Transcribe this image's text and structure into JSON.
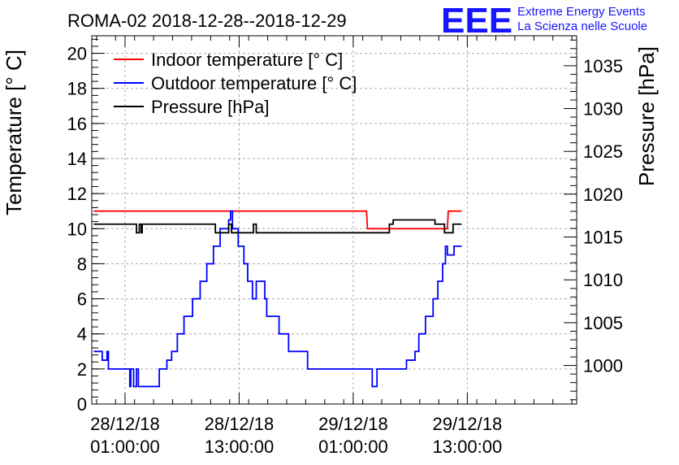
{
  "chart_data": {
    "type": "line",
    "title": "ROMA-02 2018-12-28--2018-12-29",
    "ylabel": "Temperature [° C]",
    "y2label": "Pressure [hPa]",
    "xlabel": "",
    "ylim": [
      0,
      21
    ],
    "y2lim": [
      995.5,
      1038.5
    ],
    "grid": true,
    "legend_position": "top-left",
    "y_ticks": [
      "0",
      "2",
      "4",
      "6",
      "8",
      "10",
      "12",
      "14",
      "16",
      "18",
      "20"
    ],
    "y2_ticks": [
      "1000",
      "1005",
      "1010",
      "1015",
      "1020",
      "1025",
      "1030",
      "1035"
    ],
    "x_ticks": [
      {
        "line1": "28/12/18",
        "line2": "01:00:00"
      },
      {
        "line1": "28/12/18",
        "line2": "13:00:00"
      },
      {
        "line1": "29/12/18",
        "line2": "01:00:00"
      },
      {
        "line1": "29/12/18",
        "line2": "13:00:00"
      }
    ],
    "x_tick_hours": [
      1,
      13,
      25,
      37
    ],
    "x_range_hours": [
      -2.5,
      48.5
    ],
    "series": [
      {
        "name": "Indoor temperature [° C]",
        "color": "#ff0000",
        "axis": "left",
        "x": [
          -2.3,
          11.6,
          11.7,
          26.4,
          26.5,
          34.9,
          35.0,
          36.4
        ],
        "y": [
          11,
          11,
          11,
          11,
          10,
          10,
          11,
          11
        ]
      },
      {
        "name": "Outdoor temperature [° C]",
        "color": "#0000ff",
        "axis": "left",
        "x": [
          -2.3,
          -1.4,
          -1.4,
          -0.9,
          -0.9,
          -0.75,
          -0.75,
          -0.6,
          -0.6,
          1.5,
          1.5,
          1.6,
          1.6,
          1.9,
          1.9,
          2.2,
          2.2,
          2.4,
          2.4,
          4.6,
          4.6,
          5.4,
          5.4,
          5.9,
          5.9,
          6.5,
          6.5,
          7.2,
          7.2,
          8.1,
          8.1,
          8.9,
          8.9,
          9.6,
          9.6,
          10.3,
          10.3,
          11.0,
          11.0,
          11.9,
          11.9,
          12.1,
          12.1,
          12.3,
          12.3,
          12.9,
          12.9,
          13.5,
          13.5,
          13.9,
          13.9,
          14.4,
          14.4,
          14.8,
          14.8,
          15.7,
          15.7,
          15.9,
          15.9,
          16.1,
          16.1,
          16.4,
          16.4,
          17.2,
          17.2,
          17.25,
          17.25,
          18.2,
          18.2,
          20.2,
          20.2,
          22.1,
          22.1,
          23.8,
          23.8,
          27.0,
          27.0,
          27.5,
          27.5,
          30.6,
          30.6,
          31.5,
          31.5,
          31.9,
          31.9,
          32.6,
          32.6,
          33.4,
          33.4,
          33.9,
          33.9,
          34.4,
          34.4,
          34.7,
          34.7,
          34.9,
          34.9,
          35.6,
          35.6,
          36.4
        ],
        "y": [
          3,
          3,
          2.5,
          2.5,
          3,
          3,
          2,
          2,
          2,
          2,
          1,
          1,
          2,
          2,
          1,
          1,
          2,
          2,
          1,
          1,
          2,
          2,
          2.5,
          2.5,
          3,
          3,
          4,
          4,
          5,
          5,
          6,
          6,
          7,
          7,
          8,
          8,
          9,
          9,
          10,
          10,
          10.5,
          10.5,
          11,
          11,
          10,
          10,
          9,
          9,
          8,
          8,
          7,
          7,
          6,
          6,
          7,
          7,
          6,
          6,
          5,
          5,
          5,
          5,
          5,
          5,
          4,
          4,
          4,
          4,
          3,
          3,
          2,
          2,
          2,
          2,
          2,
          2,
          1,
          1,
          2,
          2,
          2.5,
          2.5,
          3,
          3,
          4,
          4,
          5,
          5,
          6,
          6,
          7,
          7,
          8,
          8,
          9,
          9,
          8.5,
          8.5,
          9,
          9
        ]
      },
      {
        "name": "Pressure [hPa]",
        "color": "#000000",
        "axis": "right",
        "x": [
          -2.3,
          2.2,
          2.2,
          2.5,
          2.5,
          2.7,
          2.7,
          2.8,
          2.8,
          10.5,
          10.5,
          11.9,
          11.9,
          12.2,
          12.2,
          14.5,
          14.5,
          14.8,
          14.8,
          28.8,
          28.8,
          29.2,
          29.2,
          33.6,
          33.6,
          34.6,
          34.6,
          35.5,
          35.5,
          36.4
        ],
        "y": [
          1016.5,
          1016.5,
          1015.5,
          1015.5,
          1016.5,
          1016.5,
          1015.5,
          1015.5,
          1016.5,
          1016.5,
          1015.5,
          1015.5,
          1016.5,
          1016.5,
          1015.5,
          1015.5,
          1016.5,
          1016.5,
          1015.5,
          1015.5,
          1016.5,
          1016.5,
          1017.0,
          1017.0,
          1016.5,
          1016.5,
          1015.5,
          1015.5,
          1016.5,
          1016.5
        ]
      }
    ]
  },
  "logo": {
    "mark": "EEE",
    "line1": "Extreme Energy Events",
    "line2": "La Scienza nelle Scuole",
    "color": "#1515ff"
  }
}
